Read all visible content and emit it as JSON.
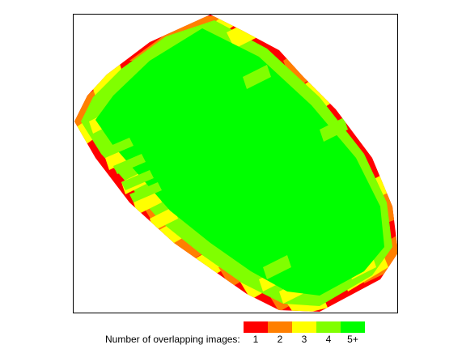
{
  "legend": {
    "title": "Number of overlapping images:",
    "classes": [
      {
        "label": "1",
        "color": "#ff0000"
      },
      {
        "label": "2",
        "color": "#ff7f00"
      },
      {
        "label": "3",
        "color": "#ffff00"
      },
      {
        "label": "4",
        "color": "#80ff00"
      },
      {
        "label": "5+",
        "color": "#00ff00"
      }
    ]
  }
}
